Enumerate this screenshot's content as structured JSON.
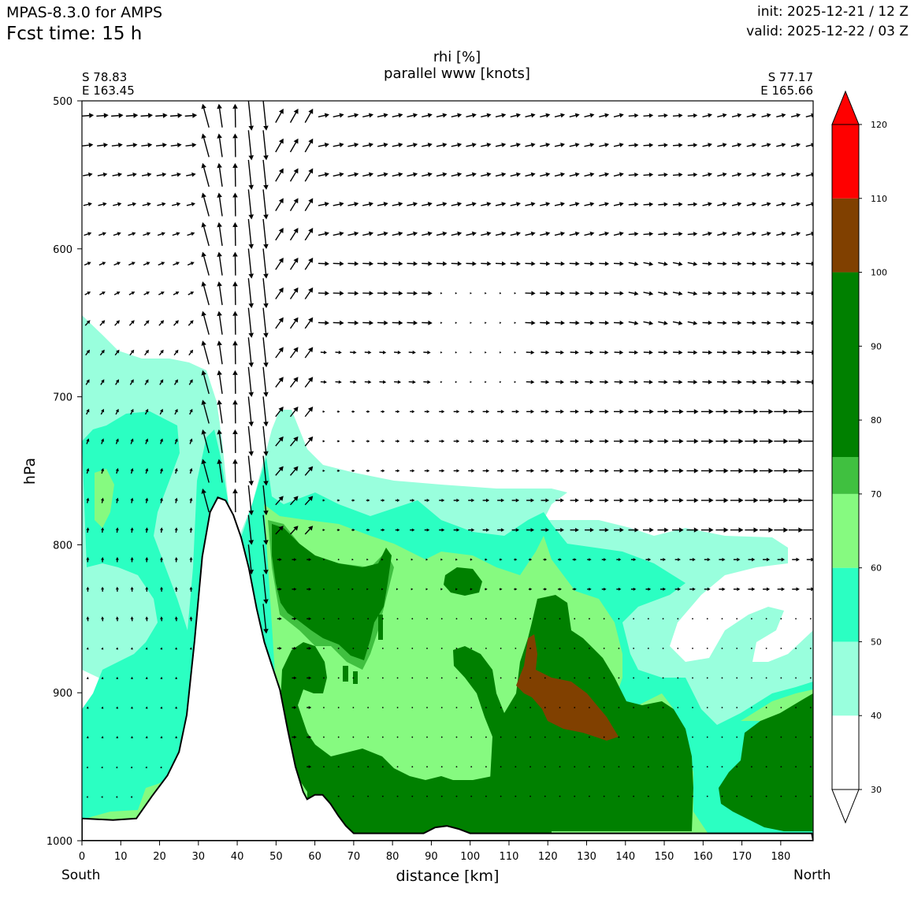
{
  "header": {
    "model": "MPAS-8.3.0 for AMPS",
    "fcst_time": "Fcst time:   15 h",
    "init": "init: 2025-12-21 / 12 Z",
    "valid": "valid: 2025-12-22 / 03 Z"
  },
  "section": {
    "start_lat": "S 78.83",
    "start_lon": "E 163.45",
    "end_lat": "S 77.17",
    "end_lon": "E 165.66",
    "left_end": "South",
    "right_end": "North"
  },
  "chart_data": {
    "type": "heatmap",
    "title": "rhi [%]",
    "subtitle": "parallel www [knots]",
    "xlabel": "distance [km]",
    "ylabel": "hPa",
    "xlim": [
      0,
      188
    ],
    "ylim": [
      1000,
      500
    ],
    "x_ticks": [
      "0",
      "10",
      "20",
      "30",
      "40",
      "50",
      "60",
      "70",
      "80",
      "90",
      "100",
      "110",
      "120",
      "130",
      "140",
      "150",
      "160",
      "170",
      "180"
    ],
    "y_ticks": [
      "500",
      "600",
      "700",
      "800",
      "900",
      "1000"
    ],
    "colorbar": {
      "levels": [
        30,
        40,
        50,
        60,
        70,
        80,
        90,
        100,
        110,
        120
      ],
      "tick_labels": [
        "30",
        "40",
        "50",
        "60",
        "70",
        "80",
        "90",
        "100",
        "110",
        "120"
      ],
      "bands": [
        {
          "from": 30,
          "to": 40,
          "color": "#ffffff"
        },
        {
          "from": 40,
          "to": 50,
          "color": "#99ffdd"
        },
        {
          "from": 50,
          "to": 60,
          "color": "#2bffc2"
        },
        {
          "from": 60,
          "to": 70,
          "color": "#86fa80"
        },
        {
          "from": 70,
          "to": 75,
          "color": "#40c040"
        },
        {
          "from": 75,
          "to": 100,
          "color": "#008000"
        },
        {
          "from": 100,
          "to": 110,
          "color": "#804000"
        },
        {
          "from": 110,
          "to": 120,
          "color": "#ff0000"
        }
      ],
      "extend": "both"
    },
    "terrain_profile": [
      [
        0,
        985
      ],
      [
        8,
        986
      ],
      [
        14,
        985
      ],
      [
        18,
        970
      ],
      [
        22,
        956
      ],
      [
        25,
        940
      ],
      [
        27,
        915
      ],
      [
        29,
        865
      ],
      [
        31,
        808
      ],
      [
        33,
        778
      ],
      [
        35,
        768
      ],
      [
        37,
        770
      ],
      [
        39,
        780
      ],
      [
        41,
        795
      ],
      [
        43,
        816
      ],
      [
        45,
        843
      ],
      [
        47,
        866
      ],
      [
        49,
        882
      ],
      [
        51,
        898
      ],
      [
        53,
        925
      ],
      [
        55,
        950
      ],
      [
        57,
        967
      ],
      [
        58,
        972
      ],
      [
        60,
        969
      ],
      [
        62,
        969
      ],
      [
        64,
        975
      ],
      [
        66,
        983
      ],
      [
        68,
        990
      ],
      [
        70,
        995
      ],
      [
        88,
        995
      ],
      [
        91,
        991
      ],
      [
        94,
        990
      ],
      [
        97,
        992
      ],
      [
        100,
        995
      ],
      [
        188,
        995
      ]
    ]
  },
  "colors": {
    "terrain_fill": "#ffffff",
    "terrain_line": "#000000",
    "arrow": "#000000"
  }
}
